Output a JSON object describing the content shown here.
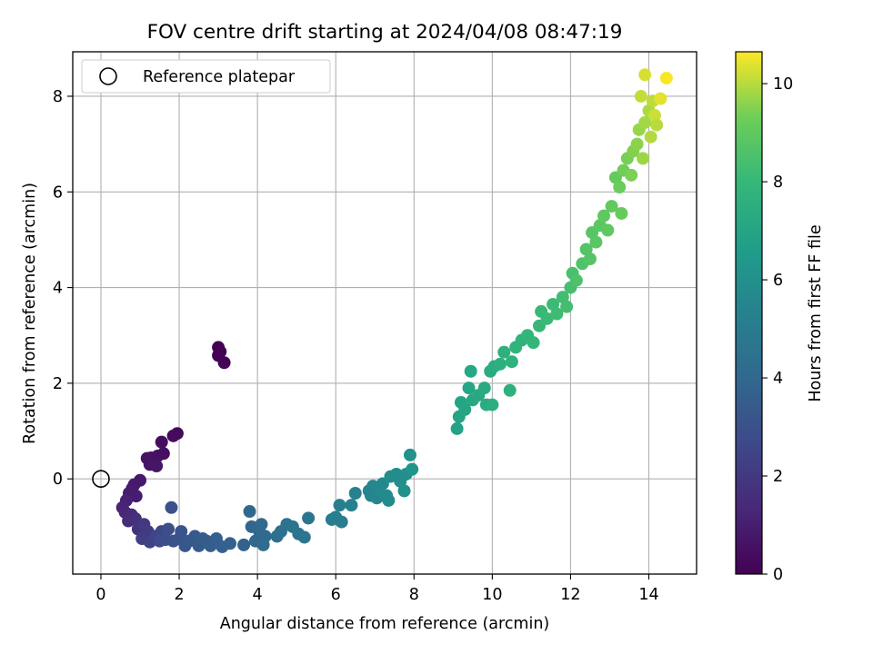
{
  "chart_data": {
    "type": "scatter",
    "title": "FOV centre drift starting at 2024/04/08 08:47:19",
    "xlabel": "Angular distance from reference (arcmin)",
    "ylabel": "Rotation from reference (arcmin)",
    "xlim": [
      -0.72,
      15.22
    ],
    "ylim": [
      -1.99,
      8.93
    ],
    "xticks": [
      0,
      2,
      4,
      6,
      8,
      10,
      12,
      14
    ],
    "yticks": [
      0,
      2,
      4,
      6,
      8
    ],
    "grid": true,
    "legend": {
      "placement": "top-left",
      "entries": [
        "Reference platepar"
      ]
    },
    "reference_point": {
      "x": 0,
      "y": 0,
      "label": "Reference platepar"
    },
    "colorbar": {
      "label": "Hours from first FF file",
      "colormap": "viridis",
      "range": [
        0,
        10.65
      ],
      "ticks": [
        0,
        2,
        4,
        6,
        8,
        10
      ]
    },
    "points": [
      {
        "x": 3.0,
        "y": 2.75,
        "c": 0.0
      },
      {
        "x": 3.05,
        "y": 2.66,
        "c": 0.03
      },
      {
        "x": 3.0,
        "y": 2.58,
        "c": 0.06
      },
      {
        "x": 3.15,
        "y": 2.43,
        "c": 0.09
      },
      {
        "x": 1.95,
        "y": 0.95,
        "c": 0.3
      },
      {
        "x": 1.85,
        "y": 0.9,
        "c": 0.35
      },
      {
        "x": 1.55,
        "y": 0.77,
        "c": 0.4
      },
      {
        "x": 1.6,
        "y": 0.53,
        "c": 0.45
      },
      {
        "x": 1.45,
        "y": 0.48,
        "c": 0.5
      },
      {
        "x": 1.28,
        "y": 0.44,
        "c": 0.55
      },
      {
        "x": 1.18,
        "y": 0.43,
        "c": 0.6
      },
      {
        "x": 1.25,
        "y": 0.3,
        "c": 0.65
      },
      {
        "x": 1.42,
        "y": 0.27,
        "c": 0.7
      },
      {
        "x": 1.0,
        "y": -0.03,
        "c": 0.8
      },
      {
        "x": 0.85,
        "y": -0.12,
        "c": 0.85
      },
      {
        "x": 0.8,
        "y": -0.2,
        "c": 0.9
      },
      {
        "x": 0.72,
        "y": -0.3,
        "c": 0.95
      },
      {
        "x": 0.9,
        "y": -0.36,
        "c": 1.0
      },
      {
        "x": 0.65,
        "y": -0.45,
        "c": 1.1
      },
      {
        "x": 0.55,
        "y": -0.6,
        "c": 1.2
      },
      {
        "x": 0.62,
        "y": -0.7,
        "c": 1.3
      },
      {
        "x": 0.78,
        "y": -0.75,
        "c": 1.4
      },
      {
        "x": 0.7,
        "y": -0.88,
        "c": 1.5
      },
      {
        "x": 0.88,
        "y": -0.83,
        "c": 1.6
      },
      {
        "x": 0.95,
        "y": -1.05,
        "c": 1.8
      },
      {
        "x": 1.1,
        "y": -0.95,
        "c": 2.0
      },
      {
        "x": 1.2,
        "y": -1.1,
        "c": 2.1
      },
      {
        "x": 1.05,
        "y": -1.25,
        "c": 2.2
      },
      {
        "x": 1.25,
        "y": -1.32,
        "c": 2.4
      },
      {
        "x": 1.4,
        "y": -1.2,
        "c": 2.5
      },
      {
        "x": 1.55,
        "y": -1.1,
        "c": 2.6
      },
      {
        "x": 1.5,
        "y": -1.3,
        "c": 2.7
      },
      {
        "x": 1.65,
        "y": -1.27,
        "c": 2.8
      },
      {
        "x": 1.8,
        "y": -0.6,
        "c": 3.0
      },
      {
        "x": 1.72,
        "y": -1.05,
        "c": 2.9
      },
      {
        "x": 1.85,
        "y": -1.3,
        "c": 3.0
      },
      {
        "x": 2.0,
        "y": -1.25,
        "c": 3.1
      },
      {
        "x": 2.05,
        "y": -1.1,
        "c": 3.15
      },
      {
        "x": 2.15,
        "y": -1.4,
        "c": 3.2
      },
      {
        "x": 2.25,
        "y": -1.3,
        "c": 3.3
      },
      {
        "x": 2.4,
        "y": -1.2,
        "c": 3.35
      },
      {
        "x": 2.5,
        "y": -1.4,
        "c": 3.4
      },
      {
        "x": 2.6,
        "y": -1.25,
        "c": 3.45
      },
      {
        "x": 2.7,
        "y": -1.3,
        "c": 3.5
      },
      {
        "x": 2.8,
        "y": -1.4,
        "c": 3.55
      },
      {
        "x": 2.95,
        "y": -1.25,
        "c": 3.6
      },
      {
        "x": 3.1,
        "y": -1.42,
        "c": 3.65
      },
      {
        "x": 3.3,
        "y": -1.35,
        "c": 3.7
      },
      {
        "x": 3.65,
        "y": -1.38,
        "c": 3.8
      },
      {
        "x": 3.8,
        "y": -0.68,
        "c": 4.0
      },
      {
        "x": 3.85,
        "y": -1.0,
        "c": 3.95
      },
      {
        "x": 3.95,
        "y": -1.3,
        "c": 4.0
      },
      {
        "x": 4.05,
        "y": -1.1,
        "c": 4.05
      },
      {
        "x": 4.1,
        "y": -0.95,
        "c": 4.1
      },
      {
        "x": 4.2,
        "y": -1.2,
        "c": 4.15
      },
      {
        "x": 4.15,
        "y": -1.38,
        "c": 4.2
      },
      {
        "x": 4.5,
        "y": -1.2,
        "c": 4.3
      },
      {
        "x": 4.6,
        "y": -1.1,
        "c": 4.4
      },
      {
        "x": 4.75,
        "y": -0.95,
        "c": 4.5
      },
      {
        "x": 4.9,
        "y": -1.0,
        "c": 4.55
      },
      {
        "x": 5.05,
        "y": -1.15,
        "c": 4.6
      },
      {
        "x": 5.2,
        "y": -1.22,
        "c": 4.65
      },
      {
        "x": 5.3,
        "y": -0.82,
        "c": 4.7
      },
      {
        "x": 5.9,
        "y": -0.85,
        "c": 5.0
      },
      {
        "x": 6.0,
        "y": -0.8,
        "c": 5.05
      },
      {
        "x": 6.15,
        "y": -0.9,
        "c": 5.1
      },
      {
        "x": 6.1,
        "y": -0.55,
        "c": 5.15
      },
      {
        "x": 6.4,
        "y": -0.55,
        "c": 5.2
      },
      {
        "x": 6.5,
        "y": -0.3,
        "c": 5.25
      },
      {
        "x": 6.85,
        "y": -0.25,
        "c": 5.4
      },
      {
        "x": 6.9,
        "y": -0.35,
        "c": 5.45
      },
      {
        "x": 6.95,
        "y": -0.15,
        "c": 5.5
      },
      {
        "x": 7.05,
        "y": -0.4,
        "c": 5.55
      },
      {
        "x": 7.1,
        "y": -0.25,
        "c": 5.6
      },
      {
        "x": 7.2,
        "y": -0.1,
        "c": 5.65
      },
      {
        "x": 7.3,
        "y": -0.35,
        "c": 5.7
      },
      {
        "x": 7.35,
        "y": -0.45,
        "c": 5.75
      },
      {
        "x": 7.4,
        "y": 0.05,
        "c": 5.8
      },
      {
        "x": 7.55,
        "y": 0.1,
        "c": 5.85
      },
      {
        "x": 7.65,
        "y": -0.05,
        "c": 5.9
      },
      {
        "x": 7.8,
        "y": 0.1,
        "c": 5.95
      },
      {
        "x": 7.75,
        "y": -0.25,
        "c": 6.0
      },
      {
        "x": 7.9,
        "y": 0.5,
        "c": 6.1
      },
      {
        "x": 7.95,
        "y": 0.2,
        "c": 6.2
      },
      {
        "x": 9.1,
        "y": 1.05,
        "c": 6.9
      },
      {
        "x": 9.15,
        "y": 1.3,
        "c": 6.95
      },
      {
        "x": 9.2,
        "y": 1.6,
        "c": 7.0
      },
      {
        "x": 9.3,
        "y": 1.45,
        "c": 7.05
      },
      {
        "x": 9.4,
        "y": 1.9,
        "c": 7.1
      },
      {
        "x": 9.45,
        "y": 2.25,
        "c": 7.15
      },
      {
        "x": 9.5,
        "y": 1.65,
        "c": 7.2
      },
      {
        "x": 9.65,
        "y": 1.75,
        "c": 7.25
      },
      {
        "x": 9.8,
        "y": 1.9,
        "c": 7.3
      },
      {
        "x": 9.85,
        "y": 1.55,
        "c": 7.35
      },
      {
        "x": 9.95,
        "y": 2.25,
        "c": 7.4
      },
      {
        "x": 10.05,
        "y": 2.35,
        "c": 7.45
      },
      {
        "x": 10.0,
        "y": 1.55,
        "c": 7.5
      },
      {
        "x": 10.2,
        "y": 2.4,
        "c": 7.55
      },
      {
        "x": 10.3,
        "y": 2.65,
        "c": 7.6
      },
      {
        "x": 10.45,
        "y": 1.85,
        "c": 7.65
      },
      {
        "x": 10.5,
        "y": 2.45,
        "c": 7.7
      },
      {
        "x": 10.6,
        "y": 2.75,
        "c": 7.75
      },
      {
        "x": 10.75,
        "y": 2.9,
        "c": 7.8
      },
      {
        "x": 10.9,
        "y": 3.0,
        "c": 7.9
      },
      {
        "x": 11.05,
        "y": 2.85,
        "c": 7.95
      },
      {
        "x": 11.2,
        "y": 3.2,
        "c": 8.0
      },
      {
        "x": 11.25,
        "y": 3.5,
        "c": 8.05
      },
      {
        "x": 11.4,
        "y": 3.35,
        "c": 8.1
      },
      {
        "x": 11.55,
        "y": 3.65,
        "c": 8.15
      },
      {
        "x": 11.65,
        "y": 3.45,
        "c": 8.2
      },
      {
        "x": 11.8,
        "y": 3.8,
        "c": 8.3
      },
      {
        "x": 11.9,
        "y": 3.6,
        "c": 8.35
      },
      {
        "x": 12.0,
        "y": 4.0,
        "c": 8.4
      },
      {
        "x": 12.05,
        "y": 4.3,
        "c": 8.5
      },
      {
        "x": 12.15,
        "y": 4.15,
        "c": 8.55
      },
      {
        "x": 12.3,
        "y": 4.5,
        "c": 8.6
      },
      {
        "x": 12.4,
        "y": 4.8,
        "c": 8.7
      },
      {
        "x": 12.5,
        "y": 4.6,
        "c": 8.75
      },
      {
        "x": 12.55,
        "y": 5.15,
        "c": 8.8
      },
      {
        "x": 12.65,
        "y": 4.95,
        "c": 8.85
      },
      {
        "x": 12.75,
        "y": 5.3,
        "c": 8.9
      },
      {
        "x": 12.85,
        "y": 5.5,
        "c": 8.95
      },
      {
        "x": 12.95,
        "y": 5.2,
        "c": 9.0
      },
      {
        "x": 13.05,
        "y": 5.7,
        "c": 9.05
      },
      {
        "x": 13.15,
        "y": 6.3,
        "c": 9.1
      },
      {
        "x": 13.25,
        "y": 6.1,
        "c": 9.2
      },
      {
        "x": 13.3,
        "y": 5.55,
        "c": 9.15
      },
      {
        "x": 13.35,
        "y": 6.45,
        "c": 9.3
      },
      {
        "x": 13.45,
        "y": 6.7,
        "c": 9.4
      },
      {
        "x": 13.55,
        "y": 6.35,
        "c": 9.45
      },
      {
        "x": 13.6,
        "y": 6.85,
        "c": 9.5
      },
      {
        "x": 13.7,
        "y": 7.0,
        "c": 9.6
      },
      {
        "x": 13.75,
        "y": 7.3,
        "c": 9.7
      },
      {
        "x": 13.85,
        "y": 6.7,
        "c": 9.75
      },
      {
        "x": 13.9,
        "y": 7.45,
        "c": 9.8
      },
      {
        "x": 14.0,
        "y": 7.7,
        "c": 9.9
      },
      {
        "x": 14.05,
        "y": 7.15,
        "c": 9.95
      },
      {
        "x": 14.1,
        "y": 7.9,
        "c": 10.05
      },
      {
        "x": 13.8,
        "y": 8.0,
        "c": 10.1
      },
      {
        "x": 14.15,
        "y": 7.6,
        "c": 10.2
      },
      {
        "x": 13.9,
        "y": 8.45,
        "c": 10.3
      },
      {
        "x": 14.3,
        "y": 7.95,
        "c": 10.4
      },
      {
        "x": 14.45,
        "y": 8.38,
        "c": 10.6
      },
      {
        "x": 14.2,
        "y": 7.4,
        "c": 10.0
      }
    ]
  }
}
